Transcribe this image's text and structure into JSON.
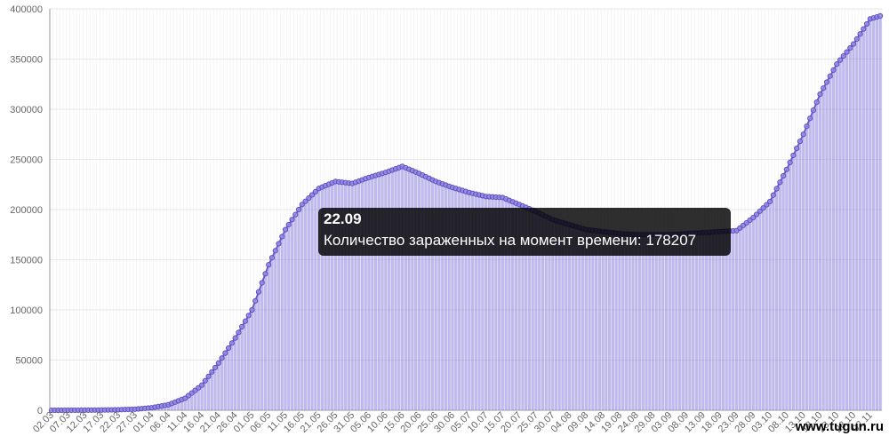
{
  "chart_data": {
    "type": "bar",
    "ylim": [
      0,
      400000
    ],
    "y_ticks": [
      "0",
      "50000",
      "100000",
      "150000",
      "200000",
      "250000",
      "300000",
      "350000",
      "400000"
    ],
    "x_tick_labels": [
      "02.03",
      "07.03",
      "12.03",
      "17.03",
      "22.03",
      "27.03",
      "01.04",
      "06.04",
      "11.04",
      "16.04",
      "21.04",
      "26.04",
      "01.05",
      "06.05",
      "11.05",
      "16.05",
      "21.05",
      "26.05",
      "31.05",
      "05.06",
      "10.06",
      "15.06",
      "20.06",
      "25.06",
      "30.06",
      "05.07",
      "10.07",
      "15.07",
      "20.07",
      "25.07",
      "30.07",
      "04.08",
      "09.08",
      "14.08",
      "19.08",
      "24.08",
      "29.08",
      "03.09",
      "08.09",
      "13.09",
      "18.09",
      "23.09",
      "28.09",
      "03.10",
      "08.10",
      "13.10",
      "18.10",
      "23.10",
      "28.10",
      "02.11"
    ],
    "grid": true,
    "series": [
      {
        "color": "#7b6fd6",
        "x": [
          "02.03",
          "07.03",
          "12.03",
          "17.03",
          "22.03",
          "27.03",
          "01.04",
          "06.04",
          "11.04",
          "16.04",
          "21.04",
          "26.04",
          "01.05",
          "06.05",
          "11.05",
          "16.05",
          "21.05",
          "26.05",
          "31.05",
          "05.06",
          "10.06",
          "15.06",
          "20.06",
          "25.06",
          "30.06",
          "05.07",
          "10.07",
          "15.07",
          "20.07",
          "25.07",
          "30.07",
          "04.08",
          "09.08",
          "14.08",
          "19.08",
          "24.08",
          "29.08",
          "03.09",
          "08.09",
          "13.09",
          "18.09",
          "23.09",
          "28.09",
          "03.10",
          "08.10",
          "13.10",
          "18.10",
          "23.10",
          "28.10",
          "02.11",
          "05.11"
        ],
        "values": [
          0,
          0,
          100,
          200,
          500,
          1000,
          2500,
          5500,
          12000,
          25000,
          47000,
          72000,
          100000,
          145000,
          180000,
          205000,
          221000,
          228000,
          226000,
          232000,
          237000,
          243000,
          236000,
          228000,
          222000,
          217000,
          213000,
          212000,
          205000,
          198000,
          190000,
          185000,
          180000,
          178000,
          176000,
          175000,
          175000,
          175000,
          176000,
          177000,
          178000,
          179000,
          192000,
          208000,
          240000,
          275000,
          315000,
          345000,
          365000,
          390000,
          393000
        ]
      }
    ]
  },
  "tooltip": {
    "title": "22.09",
    "body": "Количество зараженных на момент времени: 178207"
  },
  "watermark": "www.tugun.ru"
}
